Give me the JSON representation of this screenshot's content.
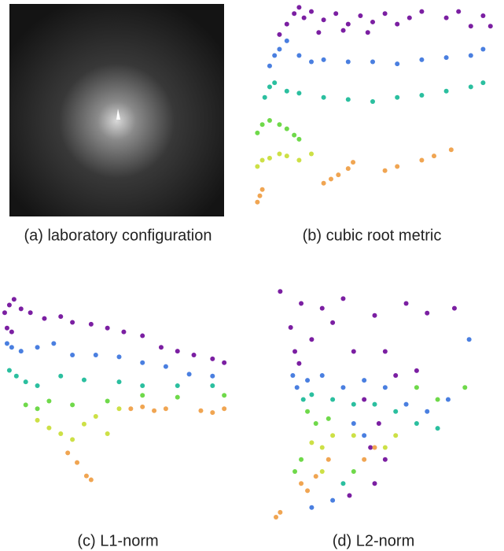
{
  "chart_data": [
    {
      "type": "image",
      "title": "(a) laboratory configuration"
    },
    {
      "type": "scatter",
      "title": "(b) cubic root metric",
      "xlim": [
        0,
        100
      ],
      "ylim": [
        0,
        100
      ],
      "series": [
        {
          "color": "#7b1fa2",
          "x": [
            12,
            15,
            18,
            20,
            22,
            25,
            30,
            35,
            40,
            45,
            50,
            55,
            60,
            65,
            70,
            80,
            85,
            95,
            98,
            90,
            28,
            38,
            48
          ],
          "values": [
            85,
            90,
            95,
            98,
            93,
            96,
            92,
            95,
            90,
            94,
            91,
            95,
            90,
            93,
            96,
            93,
            96,
            94,
            89,
            89,
            86,
            87,
            86
          ]
        },
        {
          "color": "#4a7fe0",
          "x": [
            8,
            10,
            12,
            15,
            20,
            25,
            30,
            40,
            50,
            60,
            70,
            80,
            90,
            95
          ],
          "values": [
            70,
            75,
            78,
            82,
            75,
            72,
            73,
            72,
            72,
            71,
            73,
            74,
            75,
            78
          ]
        },
        {
          "color": "#2bbf9f",
          "x": [
            6,
            8,
            10,
            15,
            20,
            30,
            40,
            50,
            60,
            70,
            80,
            90,
            95
          ],
          "values": [
            55,
            60,
            62,
            58,
            57,
            55,
            54,
            53,
            55,
            56,
            58,
            60,
            62
          ]
        },
        {
          "color": "#6fd94a",
          "x": [
            3,
            5,
            8,
            12,
            15,
            18,
            20
          ],
          "values": [
            38,
            42,
            44,
            42,
            40,
            37,
            35
          ]
        },
        {
          "color": "#cde046",
          "x": [
            3,
            5,
            8,
            12,
            15,
            20,
            25
          ],
          "values": [
            22,
            25,
            26,
            28,
            27,
            25,
            28
          ]
        },
        {
          "color": "#f0a552",
          "x": [
            30,
            33,
            36,
            40,
            42,
            55,
            60,
            70,
            75,
            82,
            3,
            4,
            5
          ],
          "values": [
            14,
            16,
            18,
            21,
            24,
            20,
            22,
            25,
            27,
            30,
            5,
            8,
            11
          ]
        }
      ]
    },
    {
      "type": "scatter",
      "title": "(c) L1-norm",
      "xlim": [
        0,
        100
      ],
      "ylim": [
        0,
        100
      ],
      "series": [
        {
          "color": "#7b1fa2",
          "x": [
            1,
            3,
            5,
            8,
            12,
            18,
            25,
            30,
            38,
            45,
            52,
            60,
            68,
            75,
            82,
            90,
            95,
            2,
            4
          ],
          "values": [
            88,
            92,
            95,
            90,
            88,
            85,
            86,
            83,
            82,
            80,
            78,
            76,
            70,
            68,
            66,
            64,
            62,
            80,
            78
          ]
        },
        {
          "color": "#4a7fe0",
          "x": [
            2,
            4,
            8,
            15,
            22,
            30,
            40,
            50,
            60,
            70,
            80,
            90
          ],
          "values": [
            72,
            70,
            68,
            70,
            72,
            66,
            66,
            65,
            62,
            60,
            56,
            55
          ]
        },
        {
          "color": "#2bbf9f",
          "x": [
            3,
            6,
            10,
            15,
            25,
            35,
            50,
            60,
            75,
            90
          ],
          "values": [
            58,
            55,
            52,
            50,
            55,
            53,
            52,
            50,
            50,
            50
          ]
        },
        {
          "color": "#6fd94a",
          "x": [
            10,
            15,
            20,
            30,
            45,
            60,
            75,
            95
          ],
          "values": [
            40,
            38,
            42,
            40,
            42,
            45,
            44,
            45
          ]
        },
        {
          "color": "#cde046",
          "x": [
            15,
            20,
            25,
            30,
            35,
            40,
            45,
            50
          ],
          "values": [
            32,
            28,
            25,
            22,
            30,
            34,
            25,
            38
          ]
        },
        {
          "color": "#f0a552",
          "x": [
            28,
            32,
            36,
            38,
            55,
            60,
            65,
            70,
            85,
            90,
            95
          ],
          "values": [
            15,
            10,
            3,
            1,
            38,
            39,
            37,
            38,
            37,
            36,
            38
          ]
        }
      ]
    },
    {
      "type": "scatter",
      "title": "(d) L2-norm",
      "xlim": [
        0,
        100
      ],
      "ylim": [
        0,
        100
      ],
      "series": [
        {
          "color": "#7b1fa2",
          "x": [
            5,
            15,
            25,
            35,
            50,
            65,
            75,
            88,
            10,
            20,
            30,
            40,
            55,
            60,
            70,
            45,
            52,
            48,
            55,
            50,
            38,
            12,
            14
          ],
          "values": [
            95,
            90,
            88,
            92,
            85,
            90,
            86,
            88,
            80,
            75,
            82,
            70,
            70,
            60,
            62,
            50,
            40,
            30,
            25,
            15,
            10,
            70,
            65
          ]
        },
        {
          "color": "#4a7fe0",
          "x": [
            11,
            13,
            18,
            25,
            35,
            45,
            55,
            65,
            75,
            85,
            95,
            40,
            45,
            30,
            20
          ],
          "values": [
            60,
            55,
            58,
            60,
            55,
            58,
            55,
            48,
            45,
            50,
            75,
            40,
            35,
            8,
            5
          ]
        },
        {
          "color": "#2bbf9f",
          "x": [
            16,
            20,
            30,
            40,
            50,
            60,
            70,
            80,
            35
          ],
          "values": [
            50,
            52,
            50,
            48,
            48,
            45,
            40,
            38,
            15
          ]
        },
        {
          "color": "#6fd94a",
          "x": [
            18,
            22,
            28,
            70,
            80,
            93,
            15,
            12,
            40
          ],
          "values": [
            45,
            40,
            42,
            55,
            50,
            55,
            25,
            20,
            20
          ]
        },
        {
          "color": "#cde046",
          "x": [
            20,
            25,
            30,
            40,
            55,
            60,
            25
          ],
          "values": [
            32,
            30,
            35,
            35,
            30,
            35,
            20
          ]
        },
        {
          "color": "#f0a552",
          "x": [
            15,
            18,
            22,
            28,
            45,
            50,
            5,
            3
          ],
          "values": [
            15,
            12,
            18,
            25,
            25,
            30,
            3,
            1
          ]
        }
      ]
    }
  ]
}
